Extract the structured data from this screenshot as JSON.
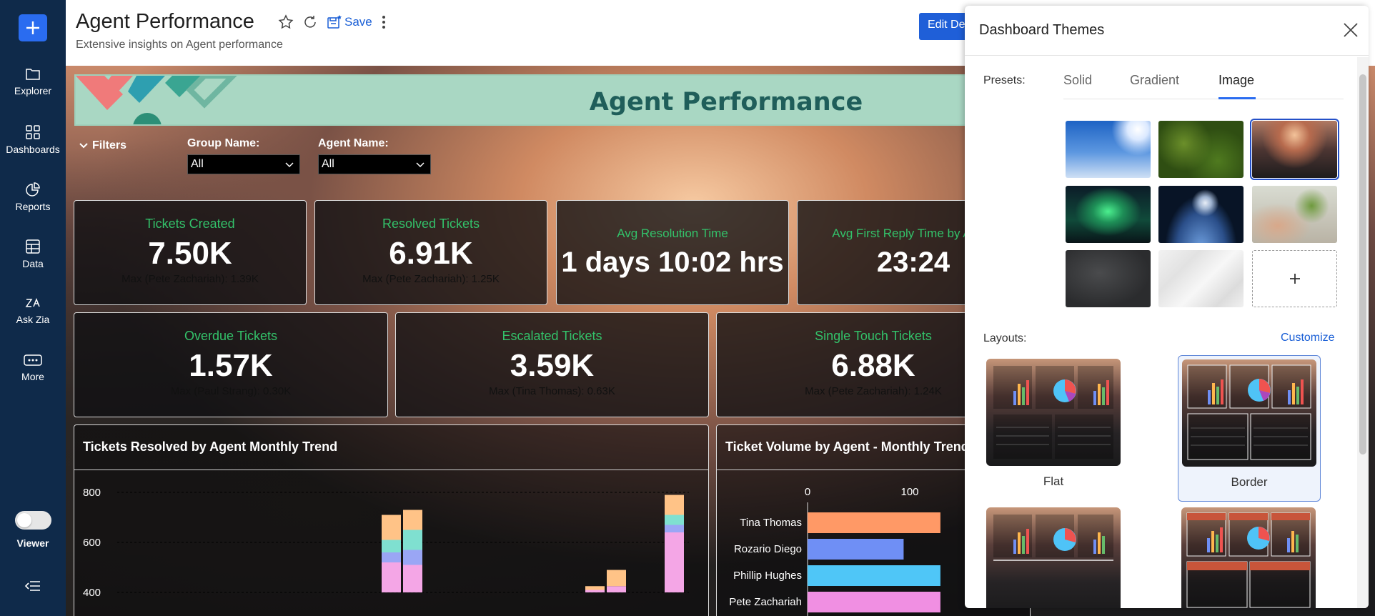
{
  "nav": {
    "items": [
      {
        "label": "Explorer",
        "icon": "folder-icon"
      },
      {
        "label": "Dashboards",
        "icon": "grid-icon"
      },
      {
        "label": "Reports",
        "icon": "pie-chart-icon"
      },
      {
        "label": "Data",
        "icon": "table-icon"
      },
      {
        "label": "Ask Zia",
        "icon": "zia-icon"
      },
      {
        "label": "More",
        "icon": "more-icon"
      }
    ],
    "viewer_label": "Viewer"
  },
  "header": {
    "title": "Agent Performance",
    "subtitle": "Extensive insights on Agent performance",
    "save_label": "Save",
    "edit_label": "Edit Design"
  },
  "dashboard": {
    "banner_title": "Agent Performance",
    "filters_label": "Filters",
    "filters": [
      {
        "label": "Group Name:",
        "value": "All"
      },
      {
        "label": "Agent Name:",
        "value": "All"
      }
    ],
    "kpis_row1": [
      {
        "title": "Tickets Created",
        "value": "7.50K",
        "max": "Max (Pete Zachariah): 1.39K"
      },
      {
        "title": "Resolved Tickets",
        "value": "6.91K",
        "max": "Max (Pete Zachariah): 1.25K"
      },
      {
        "title": "Avg Resolution Time",
        "value": "1 days 10:02 hrs",
        "max": ""
      },
      {
        "title": "Avg First Reply Time by Agent",
        "value": "23:24",
        "max": ""
      }
    ],
    "kpis_row2": [
      {
        "title": "Overdue Tickets",
        "value": "1.57K",
        "max": "Max (Paul Strang): 0.30K"
      },
      {
        "title": "Escalated Tickets",
        "value": "3.59K",
        "max": "Max (Tina Thomas): 0.63K"
      },
      {
        "title": "Single Touch Tickets",
        "value": "6.88K",
        "max": "Max (Pete Zachariah): 1.24K"
      }
    ]
  },
  "chart_data": [
    {
      "type": "bar",
      "title": "Tickets Resolved by Agent Monthly Trend",
      "y_ticks": [
        "800",
        "600",
        "400"
      ],
      "ylim": [
        400,
        900
      ],
      "series_colors": [
        "#f4a6e6",
        "#9aa6f5",
        "#7fe0d0",
        "#ffc387"
      ],
      "stacks": [
        [
          120,
          40,
          50,
          100
        ],
        [
          110,
          60,
          80,
          80
        ],
        [
          10,
          0,
          0,
          15
        ],
        [
          25,
          0,
          0,
          65
        ],
        [
          240,
          30,
          40,
          80
        ]
      ]
    },
    {
      "type": "bar",
      "orientation": "horizontal",
      "title": "Ticket Volume by Agent - Monthly Trend",
      "x_ticks": [
        "0",
        "100"
      ],
      "categories": [
        "Tina Thomas",
        "Rozario Diego",
        "Phillip Hughes",
        "Pete Zachariah"
      ],
      "values": [
        130,
        94,
        130,
        130
      ],
      "colors": [
        "#ff9966",
        "#6f8ff5",
        "#4fc6f7",
        "#f08fe2"
      ]
    }
  ],
  "panel": {
    "title": "Dashboard Themes",
    "presets_label": "Presets:",
    "tabs": [
      "Solid",
      "Gradient",
      "Image"
    ],
    "active_tab": "Image",
    "layouts_label": "Layouts:",
    "customize_label": "Customize",
    "layouts": [
      "Flat",
      "Border"
    ],
    "selected_layout": "Border"
  },
  "colors": {
    "nav_bg": "#0f2a4a",
    "accent": "#2a6cf0",
    "kpi_title": "#33c26a"
  }
}
